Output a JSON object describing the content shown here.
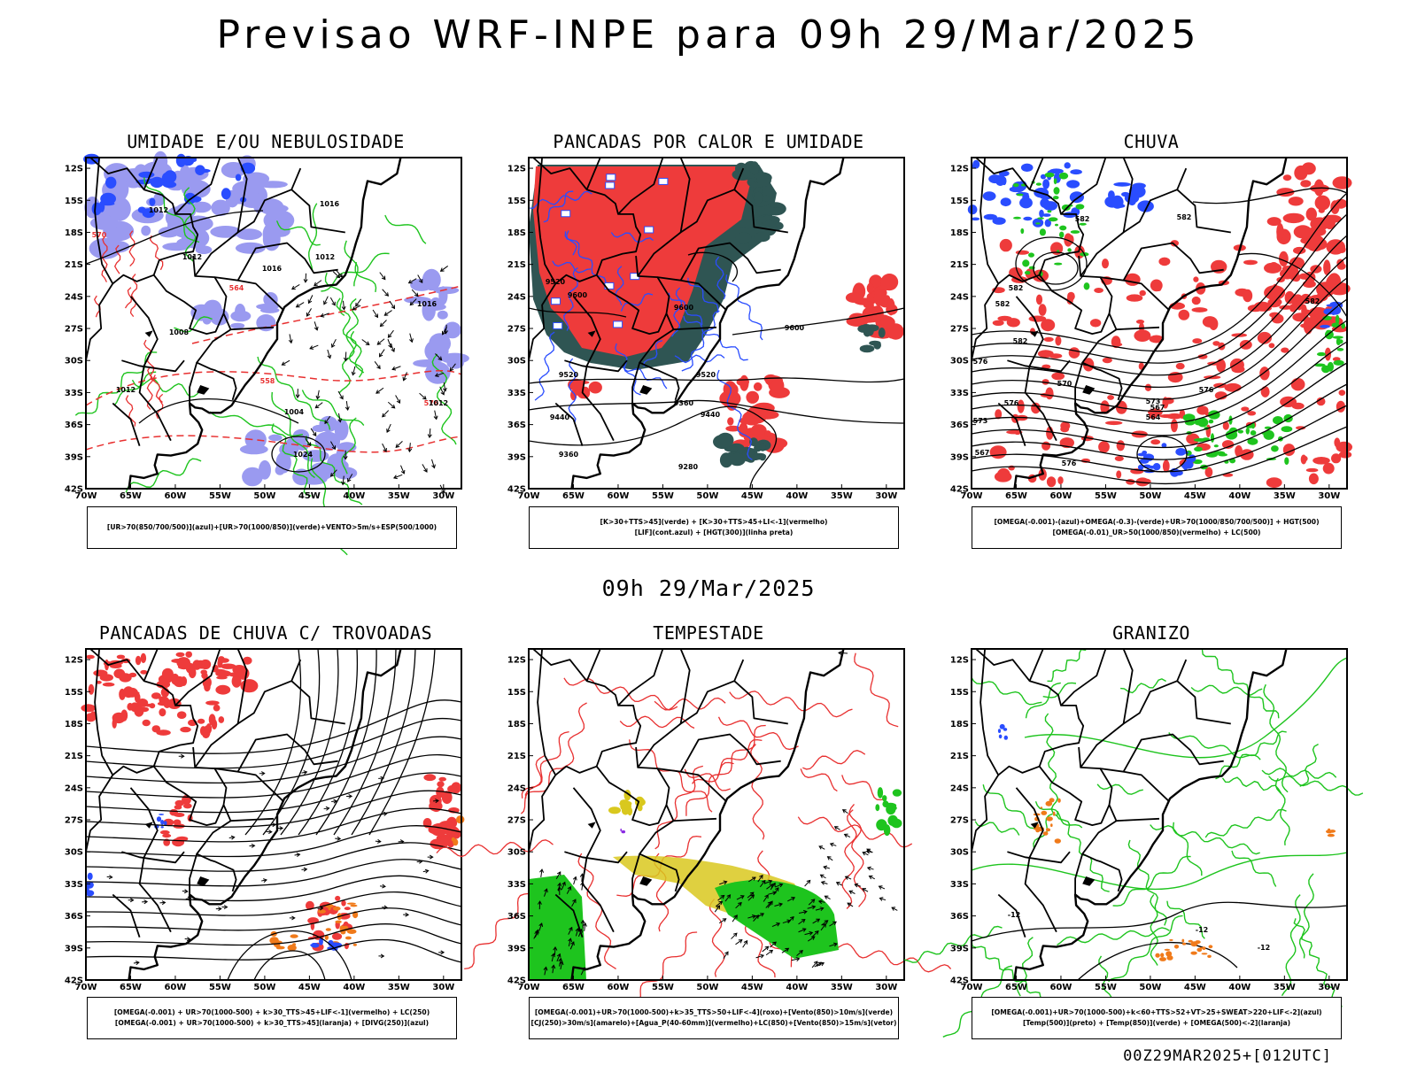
{
  "title": "Previsao WRF-INPE  para 09h 29/Mar/2025",
  "middle_title": "09h 29/Mar/2025",
  "footer": "00Z29MAR2025+[012UTC]",
  "axes": {
    "lon_labels": [
      "70W",
      "65W",
      "60W",
      "55W",
      "50W",
      "45W",
      "40W",
      "35W",
      "30W"
    ],
    "lat_labels": [
      "12S",
      "15S",
      "18S",
      "21S",
      "24S",
      "27S",
      "30S",
      "33S",
      "36S",
      "39S",
      "42S"
    ]
  },
  "colors": {
    "blue": "#2a4dff",
    "light_blue": "#9a9af0",
    "green": "#1ec41e",
    "red": "#ee3b3b",
    "dark_teal": "#2f5553",
    "orange": "#f07a1a",
    "yellow": "#d9c81e",
    "purple": "#8a2be2"
  },
  "panels": [
    {
      "id": "umidade",
      "title": "UMIDADE E/OU NEBULOSIDADE",
      "legend": [
        "[UR>70(850/700/500)](azul)+[UR>70(1000/850)](verde)+VENTO>5m/s+ESP(500/1000)"
      ],
      "contour_labels": [
        "1012",
        "1016",
        "1012",
        "1016",
        "1012",
        "1008",
        "1004",
        "1024",
        "576",
        "570",
        "564",
        "558",
        "1012",
        "1016",
        "1012"
      ]
    },
    {
      "id": "pancadas-calor",
      "title": "PANCADAS POR CALOR E UMIDADE",
      "legend": [
        "[K>30+TTS>45](verde) + [K>30+TTS>45+LI<-1](vermelho)",
        "[LIF](cont.azul) + [HGT(300)](linha preta)"
      ],
      "contour_labels": [
        "9520",
        "9600",
        "9600",
        "9600",
        "9520",
        "9440",
        "9360",
        "9440",
        "9360",
        "9280",
        "9520"
      ]
    },
    {
      "id": "chuva",
      "title": "CHUVA",
      "legend": [
        "[OMEGA(-0.001)-(azul)+OMEGA(-0.3)-(verde)+UR>70(1000/850/700/500)] + HGT(500)",
        "[OMEGA(-0.01)_UR>50(1000/850)(vermelho) + LC(500)"
      ],
      "contour_labels": [
        "582",
        "582",
        "582",
        "582",
        "576",
        "576",
        "573",
        "567",
        "570",
        "582",
        "576",
        "573",
        "567",
        "564",
        "576",
        "582"
      ]
    },
    {
      "id": "trovoadas",
      "title": "PANCADAS DE CHUVA C/ TROVOADAS",
      "legend": [
        "[OMEGA(-0.001) + UR>70(1000-500) + k>30_TTS>45+LIF<-1](vermelho) + LC(250)",
        "[OMEGA(-0.001) + UR>70(1000-500) + k>30_TTS>45](laranja) + [DIVG(250)](azul)"
      ],
      "contour_labels": []
    },
    {
      "id": "tempestade",
      "title": "TEMPESTADE",
      "legend": [
        "[OMEGA(-0.001)+UR>70(1000-500)+k>35_TTS>50+LIF<-4](roxo)+[Vento(850)>10m/s](verde)",
        "[CJ(250)>30m/s](amarelo)+[Agua_P(40-60mm)](vermelho)+LC(850)+[Vento(850)>15m/s](vetor)"
      ],
      "contour_labels": []
    },
    {
      "id": "granizo",
      "title": "GRANIZO",
      "legend": [
        "[OMEGA(-0.001)+UR>70(1000-500)+k<60+TTS>52+VT>25+SWEAT>220+LIF<-2](azul)",
        "[Temp(500)](preto) + [Temp(850)](verde) + [OMEGA(500)<-2](laranja)"
      ],
      "contour_labels": [
        "-12",
        "-12",
        "-12"
      ]
    }
  ]
}
